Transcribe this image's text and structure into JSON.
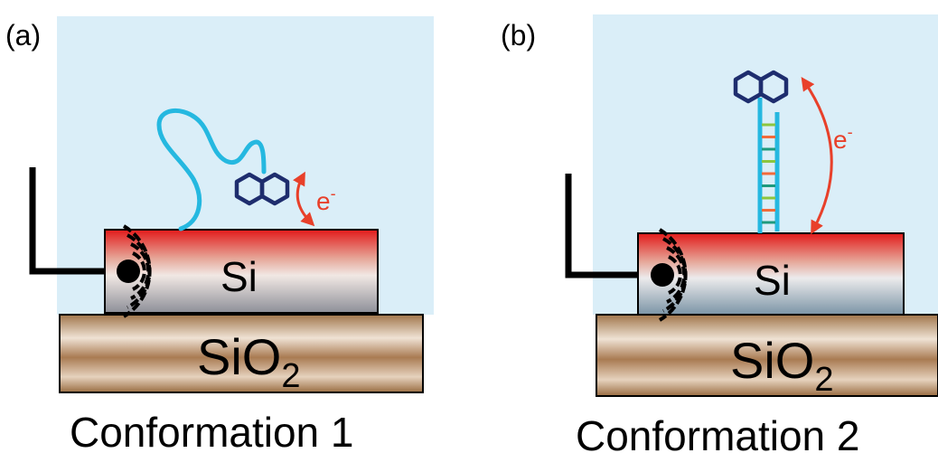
{
  "panels": [
    {
      "letter": "(a)",
      "channel_label": "Si",
      "substrate_label": "SiO",
      "substrate_subscript": "2",
      "electron_label": "e",
      "electron_superscript": "-",
      "caption": "Conformation 1"
    },
    {
      "letter": "(b)",
      "channel_label": "Si",
      "substrate_label": "SiO",
      "substrate_subscript": "2",
      "electron_label": "e",
      "electron_superscript": "-",
      "caption": "Conformation 2"
    }
  ],
  "colors": {
    "solution": "#daeef8",
    "dna_strand": "#25b8e0",
    "redox_tag": "#1e2d6e",
    "electron_arrow": "#e8402a",
    "electrode": "#000000",
    "base_pair_colors": [
      "#8cc63f",
      "#f26b3a",
      "#1e9a7e",
      "#8cc63f",
      "#f26b3a",
      "#1e9a7e",
      "#8cc63f",
      "#f26b3a",
      "#1e9a7e"
    ]
  },
  "icons": {
    "redox_tag": "naphthalene-icon",
    "signal": "signal-waves-icon"
  }
}
